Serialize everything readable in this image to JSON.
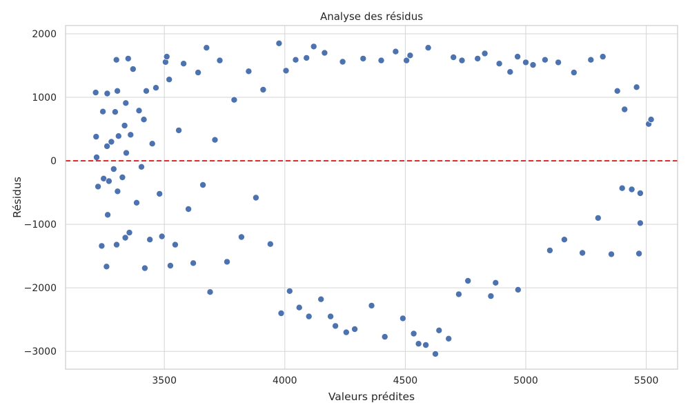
{
  "chart_data": {
    "type": "scatter",
    "title": "Analyse des résidus",
    "xlabel": "Valeurs prédites",
    "ylabel": "Résidus",
    "xlim": [
      3090,
      5630
    ],
    "ylim": [
      -3280,
      2130
    ],
    "x_ticks": [
      3500,
      4000,
      4500,
      5000,
      5500
    ],
    "y_ticks": [
      -3000,
      -2000,
      -1000,
      0,
      1000,
      2000
    ],
    "x_tick_labels": [
      "3500",
      "4000",
      "4500",
      "5000",
      "5500"
    ],
    "y_tick_labels": [
      "−3000",
      "−2000",
      "−1000",
      "0",
      "1000",
      "2000"
    ],
    "grid": true,
    "reference_line": {
      "y": 0,
      "style": "dashed",
      "color": "#e31a1c"
    },
    "marker_color": "#4c72b0",
    "marker_edge_color": "#ffffff",
    "series": [
      {
        "points": [
          [
            3215,
            1075
          ],
          [
            3217,
            380
          ],
          [
            3219,
            55
          ],
          [
            3225,
            -405
          ],
          [
            3240,
            -1340
          ],
          [
            3245,
            775
          ],
          [
            3248,
            -280
          ],
          [
            3260,
            -1665
          ],
          [
            3262,
            230
          ],
          [
            3263,
            1060
          ],
          [
            3265,
            -850
          ],
          [
            3270,
            -320
          ],
          [
            3280,
            300
          ],
          [
            3290,
            -130
          ],
          [
            3296,
            770
          ],
          [
            3301,
            1590
          ],
          [
            3302,
            -1320
          ],
          [
            3305,
            1100
          ],
          [
            3306,
            -480
          ],
          [
            3310,
            390
          ],
          [
            3326,
            -260
          ],
          [
            3335,
            555
          ],
          [
            3338,
            -1210
          ],
          [
            3340,
            910
          ],
          [
            3342,
            125
          ],
          [
            3350,
            1610
          ],
          [
            3355,
            -1130
          ],
          [
            3360,
            410
          ],
          [
            3370,
            1445
          ],
          [
            3385,
            -660
          ],
          [
            3395,
            790
          ],
          [
            3405,
            -95
          ],
          [
            3415,
            650
          ],
          [
            3419,
            -1690
          ],
          [
            3425,
            1100
          ],
          [
            3440,
            -1240
          ],
          [
            3450,
            270
          ],
          [
            3465,
            1150
          ],
          [
            3480,
            -520
          ],
          [
            3490,
            -1190
          ],
          [
            3505,
            1555
          ],
          [
            3510,
            1640
          ],
          [
            3520,
            1280
          ],
          [
            3525,
            -1650
          ],
          [
            3545,
            -1320
          ],
          [
            3560,
            480
          ],
          [
            3580,
            1530
          ],
          [
            3600,
            -760
          ],
          [
            3620,
            -1610
          ],
          [
            3640,
            1390
          ],
          [
            3660,
            -380
          ],
          [
            3675,
            1780
          ],
          [
            3690,
            -2065
          ],
          [
            3710,
            330
          ],
          [
            3730,
            1580
          ],
          [
            3760,
            -1590
          ],
          [
            3790,
            960
          ],
          [
            3820,
            -1200
          ],
          [
            3850,
            1410
          ],
          [
            3880,
            -580
          ],
          [
            3910,
            1120
          ],
          [
            3940,
            -1310
          ],
          [
            3976,
            1850
          ],
          [
            3985,
            -2400
          ],
          [
            4005,
            1420
          ],
          [
            4020,
            -2050
          ],
          [
            4045,
            1590
          ],
          [
            4060,
            -2310
          ],
          [
            4090,
            1620
          ],
          [
            4100,
            -2450
          ],
          [
            4120,
            1800
          ],
          [
            4150,
            -2180
          ],
          [
            4165,
            1700
          ],
          [
            4190,
            -2450
          ],
          [
            4210,
            -2600
          ],
          [
            4240,
            1560
          ],
          [
            4255,
            -2700
          ],
          [
            4290,
            -2650
          ],
          [
            4325,
            1610
          ],
          [
            4360,
            -2280
          ],
          [
            4400,
            1580
          ],
          [
            4415,
            -2770
          ],
          [
            4460,
            1720
          ],
          [
            4490,
            -2480
          ],
          [
            4505,
            1580
          ],
          [
            4520,
            1660
          ],
          [
            4535,
            -2720
          ],
          [
            4555,
            -2880
          ],
          [
            4585,
            -2900
          ],
          [
            4595,
            1780
          ],
          [
            4625,
            -3040
          ],
          [
            4640,
            -2670
          ],
          [
            4680,
            -2800
          ],
          [
            4700,
            1630
          ],
          [
            4722,
            -2100
          ],
          [
            4735,
            1580
          ],
          [
            4760,
            -1890
          ],
          [
            4800,
            1610
          ],
          [
            4830,
            1690
          ],
          [
            4855,
            -2130
          ],
          [
            4875,
            -1920
          ],
          [
            4890,
            1530
          ],
          [
            4935,
            1400
          ],
          [
            4966,
            1640
          ],
          [
            4968,
            -2030
          ],
          [
            5000,
            1550
          ],
          [
            5030,
            1510
          ],
          [
            5080,
            1590
          ],
          [
            5100,
            -1410
          ],
          [
            5135,
            1550
          ],
          [
            5160,
            -1240
          ],
          [
            5200,
            1390
          ],
          [
            5235,
            -1450
          ],
          [
            5270,
            1590
          ],
          [
            5300,
            -900
          ],
          [
            5320,
            1640
          ],
          [
            5355,
            -1470
          ],
          [
            5380,
            1100
          ],
          [
            5400,
            -430
          ],
          [
            5410,
            810
          ],
          [
            5440,
            -450
          ],
          [
            5460,
            1160
          ],
          [
            5470,
            -1460
          ],
          [
            5475,
            -980
          ],
          [
            5510,
            580
          ],
          [
            5520,
            650
          ],
          [
            5475,
            -510
          ]
        ]
      }
    ]
  }
}
